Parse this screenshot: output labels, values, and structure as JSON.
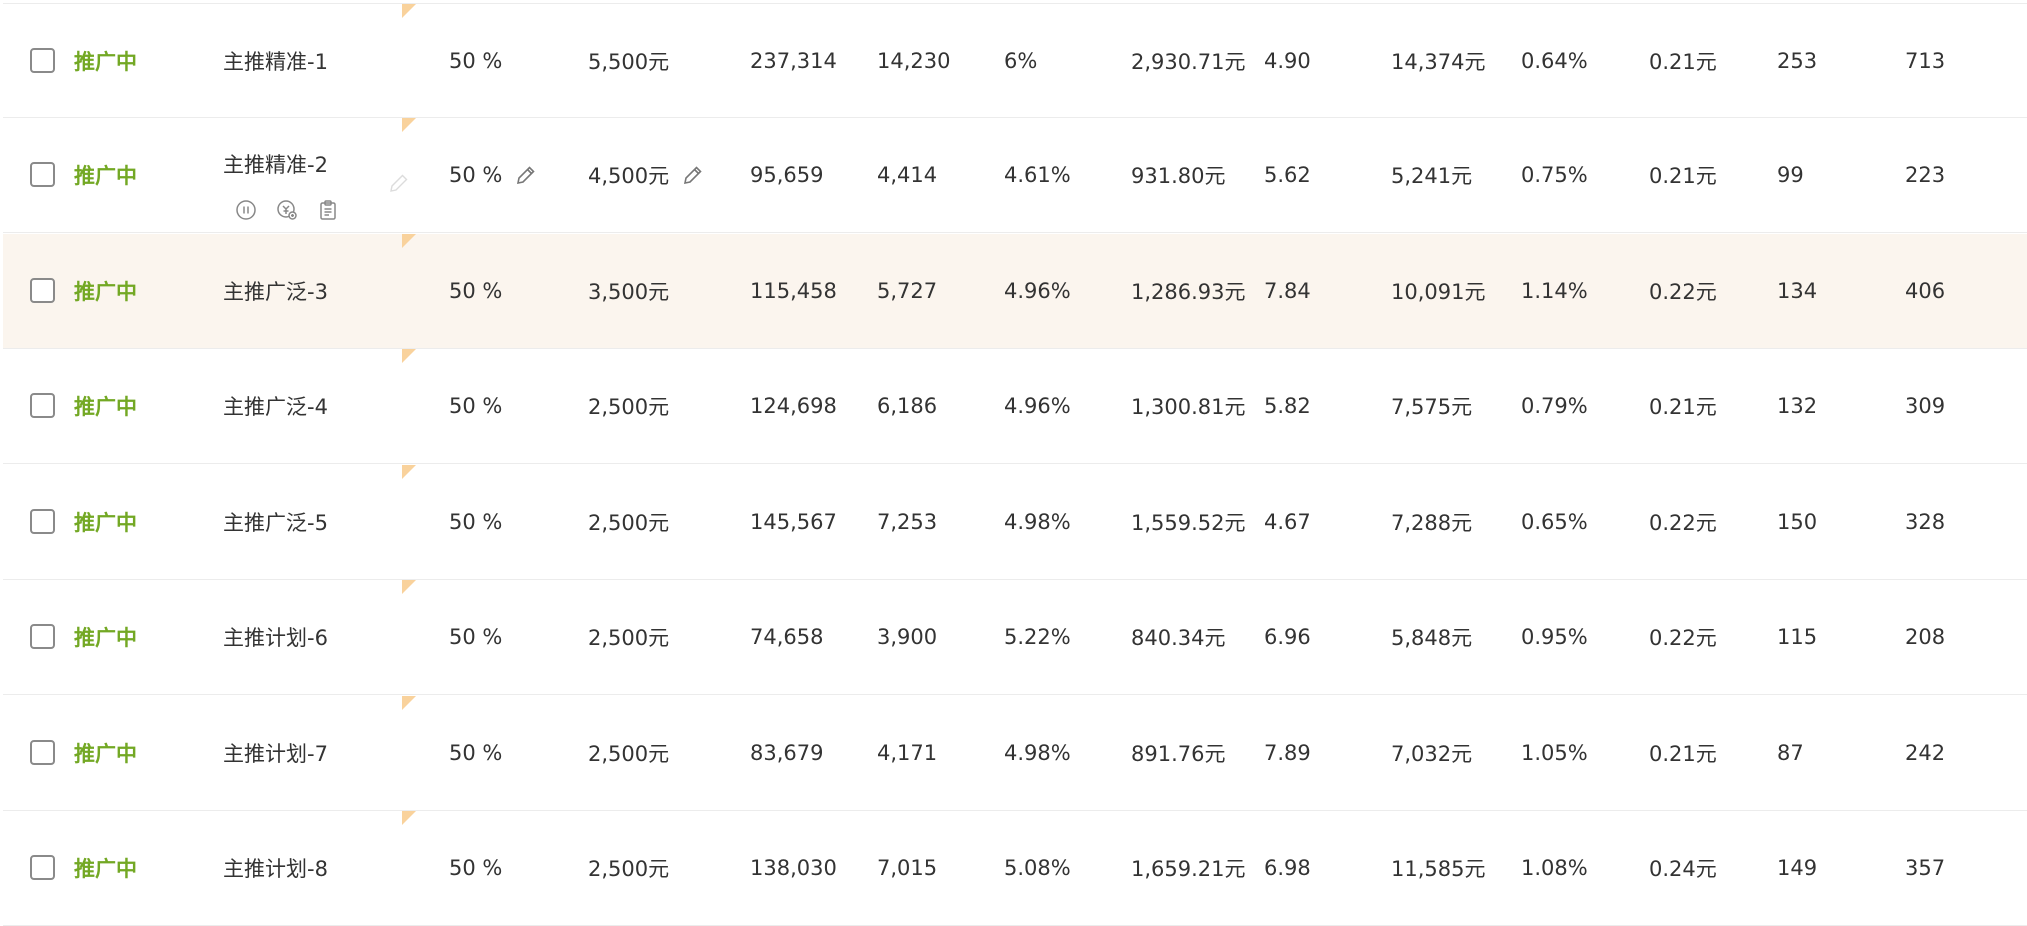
{
  "rows": [
    {
      "status": "推广中",
      "name": "主推精准-1",
      "ratio": "50 %",
      "budget": "5,500元",
      "impressions": "237,314",
      "clicks": "14,230",
      "ctr": "6%",
      "cost": "2,930.71元",
      "roi": "4.90",
      "gmv": "14,374元",
      "cvr": "0.64%",
      "cpc": "0.21元",
      "orders": "253",
      "items": "713"
    },
    {
      "status": "推广中",
      "name": "主推精准-2",
      "ratio": "50 %",
      "budget": "4,500元",
      "impressions": "95,659",
      "clicks": "4,414",
      "ctr": "4.61%",
      "cost": "931.80元",
      "roi": "5.62",
      "gmv": "5,241元",
      "cvr": "0.75%",
      "cpc": "0.21元",
      "orders": "99",
      "items": "223"
    },
    {
      "status": "推广中",
      "name": "主推广泛-3",
      "ratio": "50 %",
      "budget": "3,500元",
      "impressions": "115,458",
      "clicks": "5,727",
      "ctr": "4.96%",
      "cost": "1,286.93元",
      "roi": "7.84",
      "gmv": "10,091元",
      "cvr": "1.14%",
      "cpc": "0.22元",
      "orders": "134",
      "items": "406"
    },
    {
      "status": "推广中",
      "name": "主推广泛-4",
      "ratio": "50 %",
      "budget": "2,500元",
      "impressions": "124,698",
      "clicks": "6,186",
      "ctr": "4.96%",
      "cost": "1,300.81元",
      "roi": "5.82",
      "gmv": "7,575元",
      "cvr": "0.79%",
      "cpc": "0.21元",
      "orders": "132",
      "items": "309"
    },
    {
      "status": "推广中",
      "name": "主推广泛-5",
      "ratio": "50 %",
      "budget": "2,500元",
      "impressions": "145,567",
      "clicks": "7,253",
      "ctr": "4.98%",
      "cost": "1,559.52元",
      "roi": "4.67",
      "gmv": "7,288元",
      "cvr": "0.65%",
      "cpc": "0.22元",
      "orders": "150",
      "items": "328"
    },
    {
      "status": "推广中",
      "name": "主推计划-6",
      "ratio": "50 %",
      "budget": "2,500元",
      "impressions": "74,658",
      "clicks": "3,900",
      "ctr": "5.22%",
      "cost": "840.34元",
      "roi": "6.96",
      "gmv": "5,848元",
      "cvr": "0.95%",
      "cpc": "0.22元",
      "orders": "115",
      "items": "208"
    },
    {
      "status": "推广中",
      "name": "主推计划-7",
      "ratio": "50 %",
      "budget": "2,500元",
      "impressions": "83,679",
      "clicks": "4,171",
      "ctr": "4.98%",
      "cost": "891.76元",
      "roi": "7.89",
      "gmv": "7,032元",
      "cvr": "1.05%",
      "cpc": "0.21元",
      "orders": "87",
      "items": "242"
    },
    {
      "status": "推广中",
      "name": "主推计划-8",
      "ratio": "50 %",
      "budget": "2,500元",
      "impressions": "138,030",
      "clicks": "7,015",
      "ctr": "5.08%",
      "cost": "1,659.21元",
      "roi": "6.98",
      "gmv": "11,585元",
      "cvr": "1.08%",
      "cpc": "0.24元",
      "orders": "149",
      "items": "357"
    }
  ],
  "hover_row": 2,
  "edit_row": 1,
  "colors": {
    "status": "#73a824",
    "hover": "#fbf5ee",
    "corner": "#f9d29c"
  },
  "icons": {
    "edit": "pencil-icon",
    "pause": "pause-icon",
    "copy": "copy-icon",
    "budget": "budget-icon"
  }
}
